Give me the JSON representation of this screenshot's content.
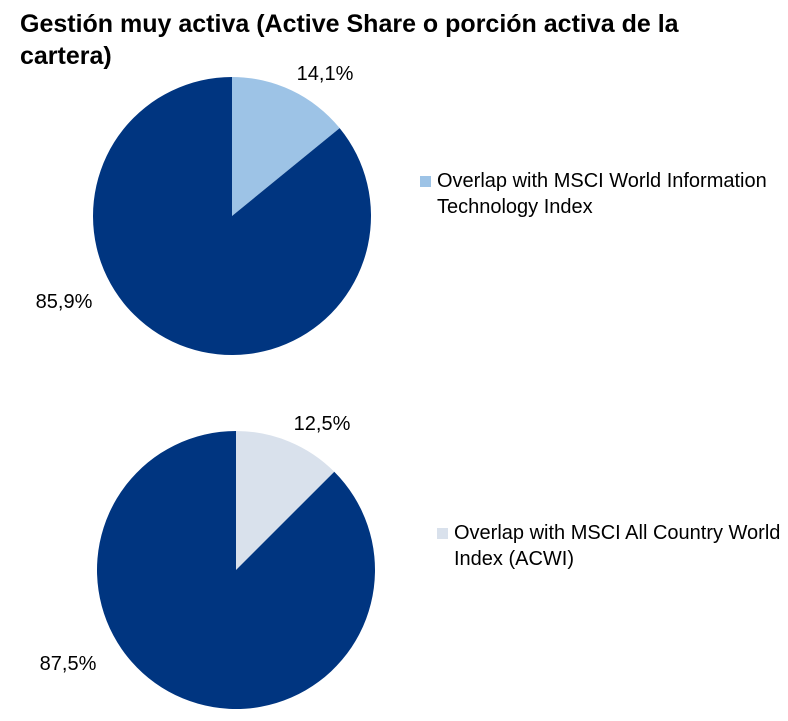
{
  "title": "Gestión muy activa (Active Share o porción activa de la cartera)",
  "colors": {
    "active": "#003580",
    "overlap_itech": "#9dc3e6",
    "overlap_acwi": "#d9e1ec"
  },
  "chart_data": [
    {
      "type": "pie",
      "slices": [
        {
          "label": "Overlap with MSCI World Information Technology Index",
          "value": 14.1,
          "display": "14,1%",
          "color": "#9dc3e6"
        },
        {
          "label": "",
          "value": 85.9,
          "display": "85,9%",
          "color": "#003580"
        }
      ],
      "legend": [
        {
          "label": "Overlap with MSCI World Information Technology Index",
          "color": "#9dc3e6"
        }
      ],
      "legend_position": "right"
    },
    {
      "type": "pie",
      "slices": [
        {
          "label": "Overlap with MSCI All Country World Index (ACWI)",
          "value": 12.5,
          "display": "12,5%",
          "color": "#d9e1ec"
        },
        {
          "label": "",
          "value": 87.5,
          "display": "87,5%",
          "color": "#003580"
        }
      ],
      "legend": [
        {
          "label": "Overlap with MSCI All Country World Index (ACWI)",
          "color": "#d9e1ec"
        }
      ],
      "legend_position": "right"
    }
  ]
}
